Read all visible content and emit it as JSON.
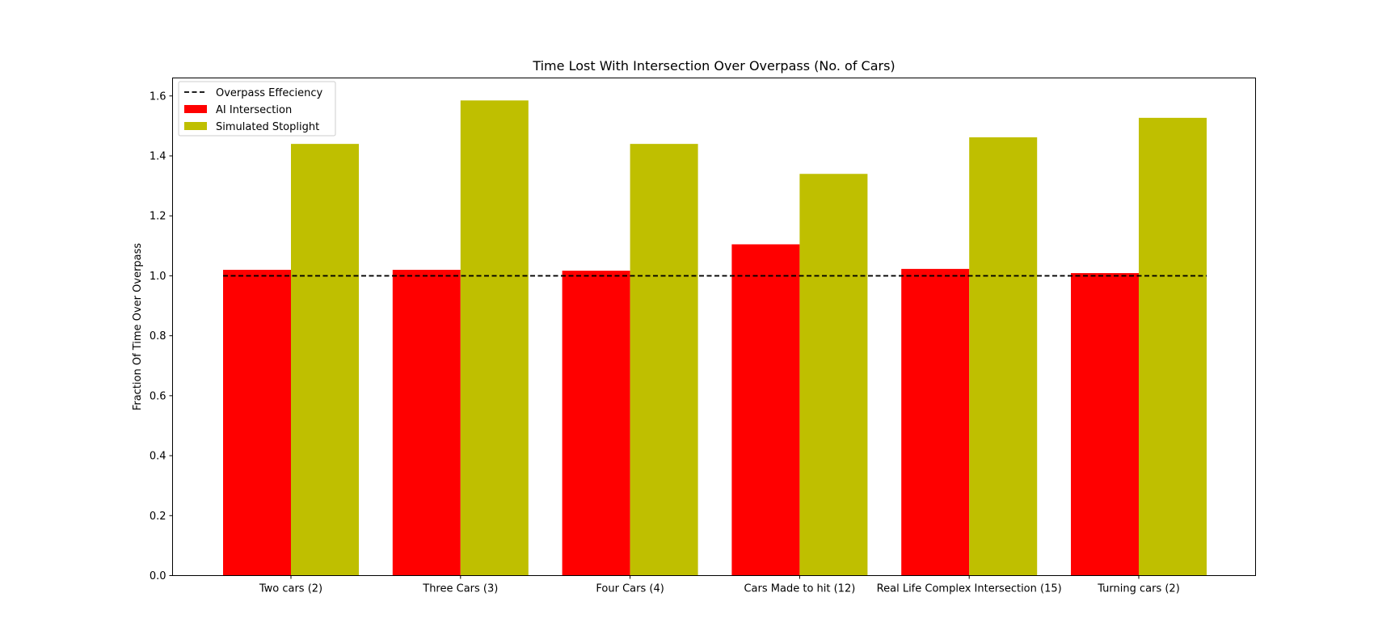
{
  "chart_data": {
    "type": "bar",
    "title": "Time Lost With Intersection Over Overpass (No. of Cars)",
    "xlabel": "",
    "ylabel": "Fraction Of Time Over Overpass",
    "ylim": [
      0,
      1.66
    ],
    "yticks": [
      "0.0",
      "0.2",
      "0.4",
      "0.6",
      "0.8",
      "1.0",
      "1.2",
      "1.4",
      "1.6"
    ],
    "ytick_values": [
      0,
      0.2,
      0.4,
      0.6,
      0.8,
      1.0,
      1.2,
      1.4,
      1.6
    ],
    "categories": [
      "Two cars (2)",
      "Three Cars (3)",
      "Four Cars (4)",
      "Cars Made to hit (12)",
      "Real Life Complex Intersection (15)",
      "Turning cars (2)"
    ],
    "series": [
      {
        "name": "AI Intersection",
        "color": "#ff0000",
        "values": [
          1.02,
          1.02,
          1.017,
          1.105,
          1.023,
          1.009
        ]
      },
      {
        "name": "Simulated Stoplight",
        "color": "#bfbf00",
        "values": [
          1.44,
          1.585,
          1.44,
          1.34,
          1.462,
          1.527
        ]
      }
    ],
    "reference_line": {
      "name": "Overpass Effeciency",
      "value": 1.0,
      "color": "#000000",
      "style": "dashed"
    },
    "legend_position": "top-left",
    "grid": false
  }
}
